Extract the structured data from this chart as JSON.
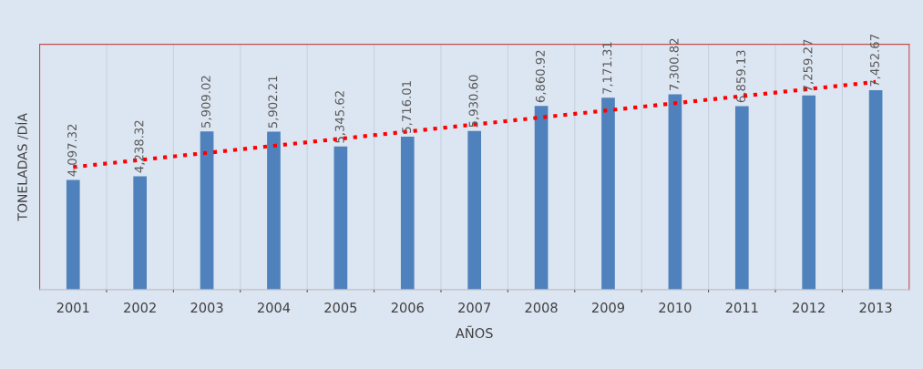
{
  "chart_data": {
    "type": "bar",
    "xlabel": "AÑOS",
    "ylabel": "TONELADAS /DÍA",
    "categories": [
      "2001",
      "2002",
      "2003",
      "2004",
      "2005",
      "2006",
      "2007",
      "2008",
      "2009",
      "2010",
      "2011",
      "2012",
      "2013"
    ],
    "series": [
      {
        "color": "#4f81bd",
        "values": [
          4097.32,
          4238.32,
          5909.02,
          5902.21,
          5345.62,
          5716.01,
          5930.6,
          6860.92,
          7171.31,
          7300.82,
          6859.13,
          7259.27,
          7452.67
        ],
        "value_labels": [
          "4,097.32",
          "4,238.32",
          "5,909.02",
          "5,902.21",
          "5,345.62",
          "5,716.01",
          "5,930.60",
          "6,860.92",
          "7,171.31",
          "7,300.82",
          "6,859.13",
          "7,259.27",
          "7,452.67"
        ]
      },
      {
        "type": "line",
        "color": "#ff0000",
        "line_style": "dotted",
        "values": [
          4580,
          4845,
          5110,
          5375,
          5640,
          5905,
          6170,
          6435,
          6700,
          6965,
          7230,
          7495,
          7760
        ]
      }
    ],
    "grid": "x",
    "legend": false
  }
}
